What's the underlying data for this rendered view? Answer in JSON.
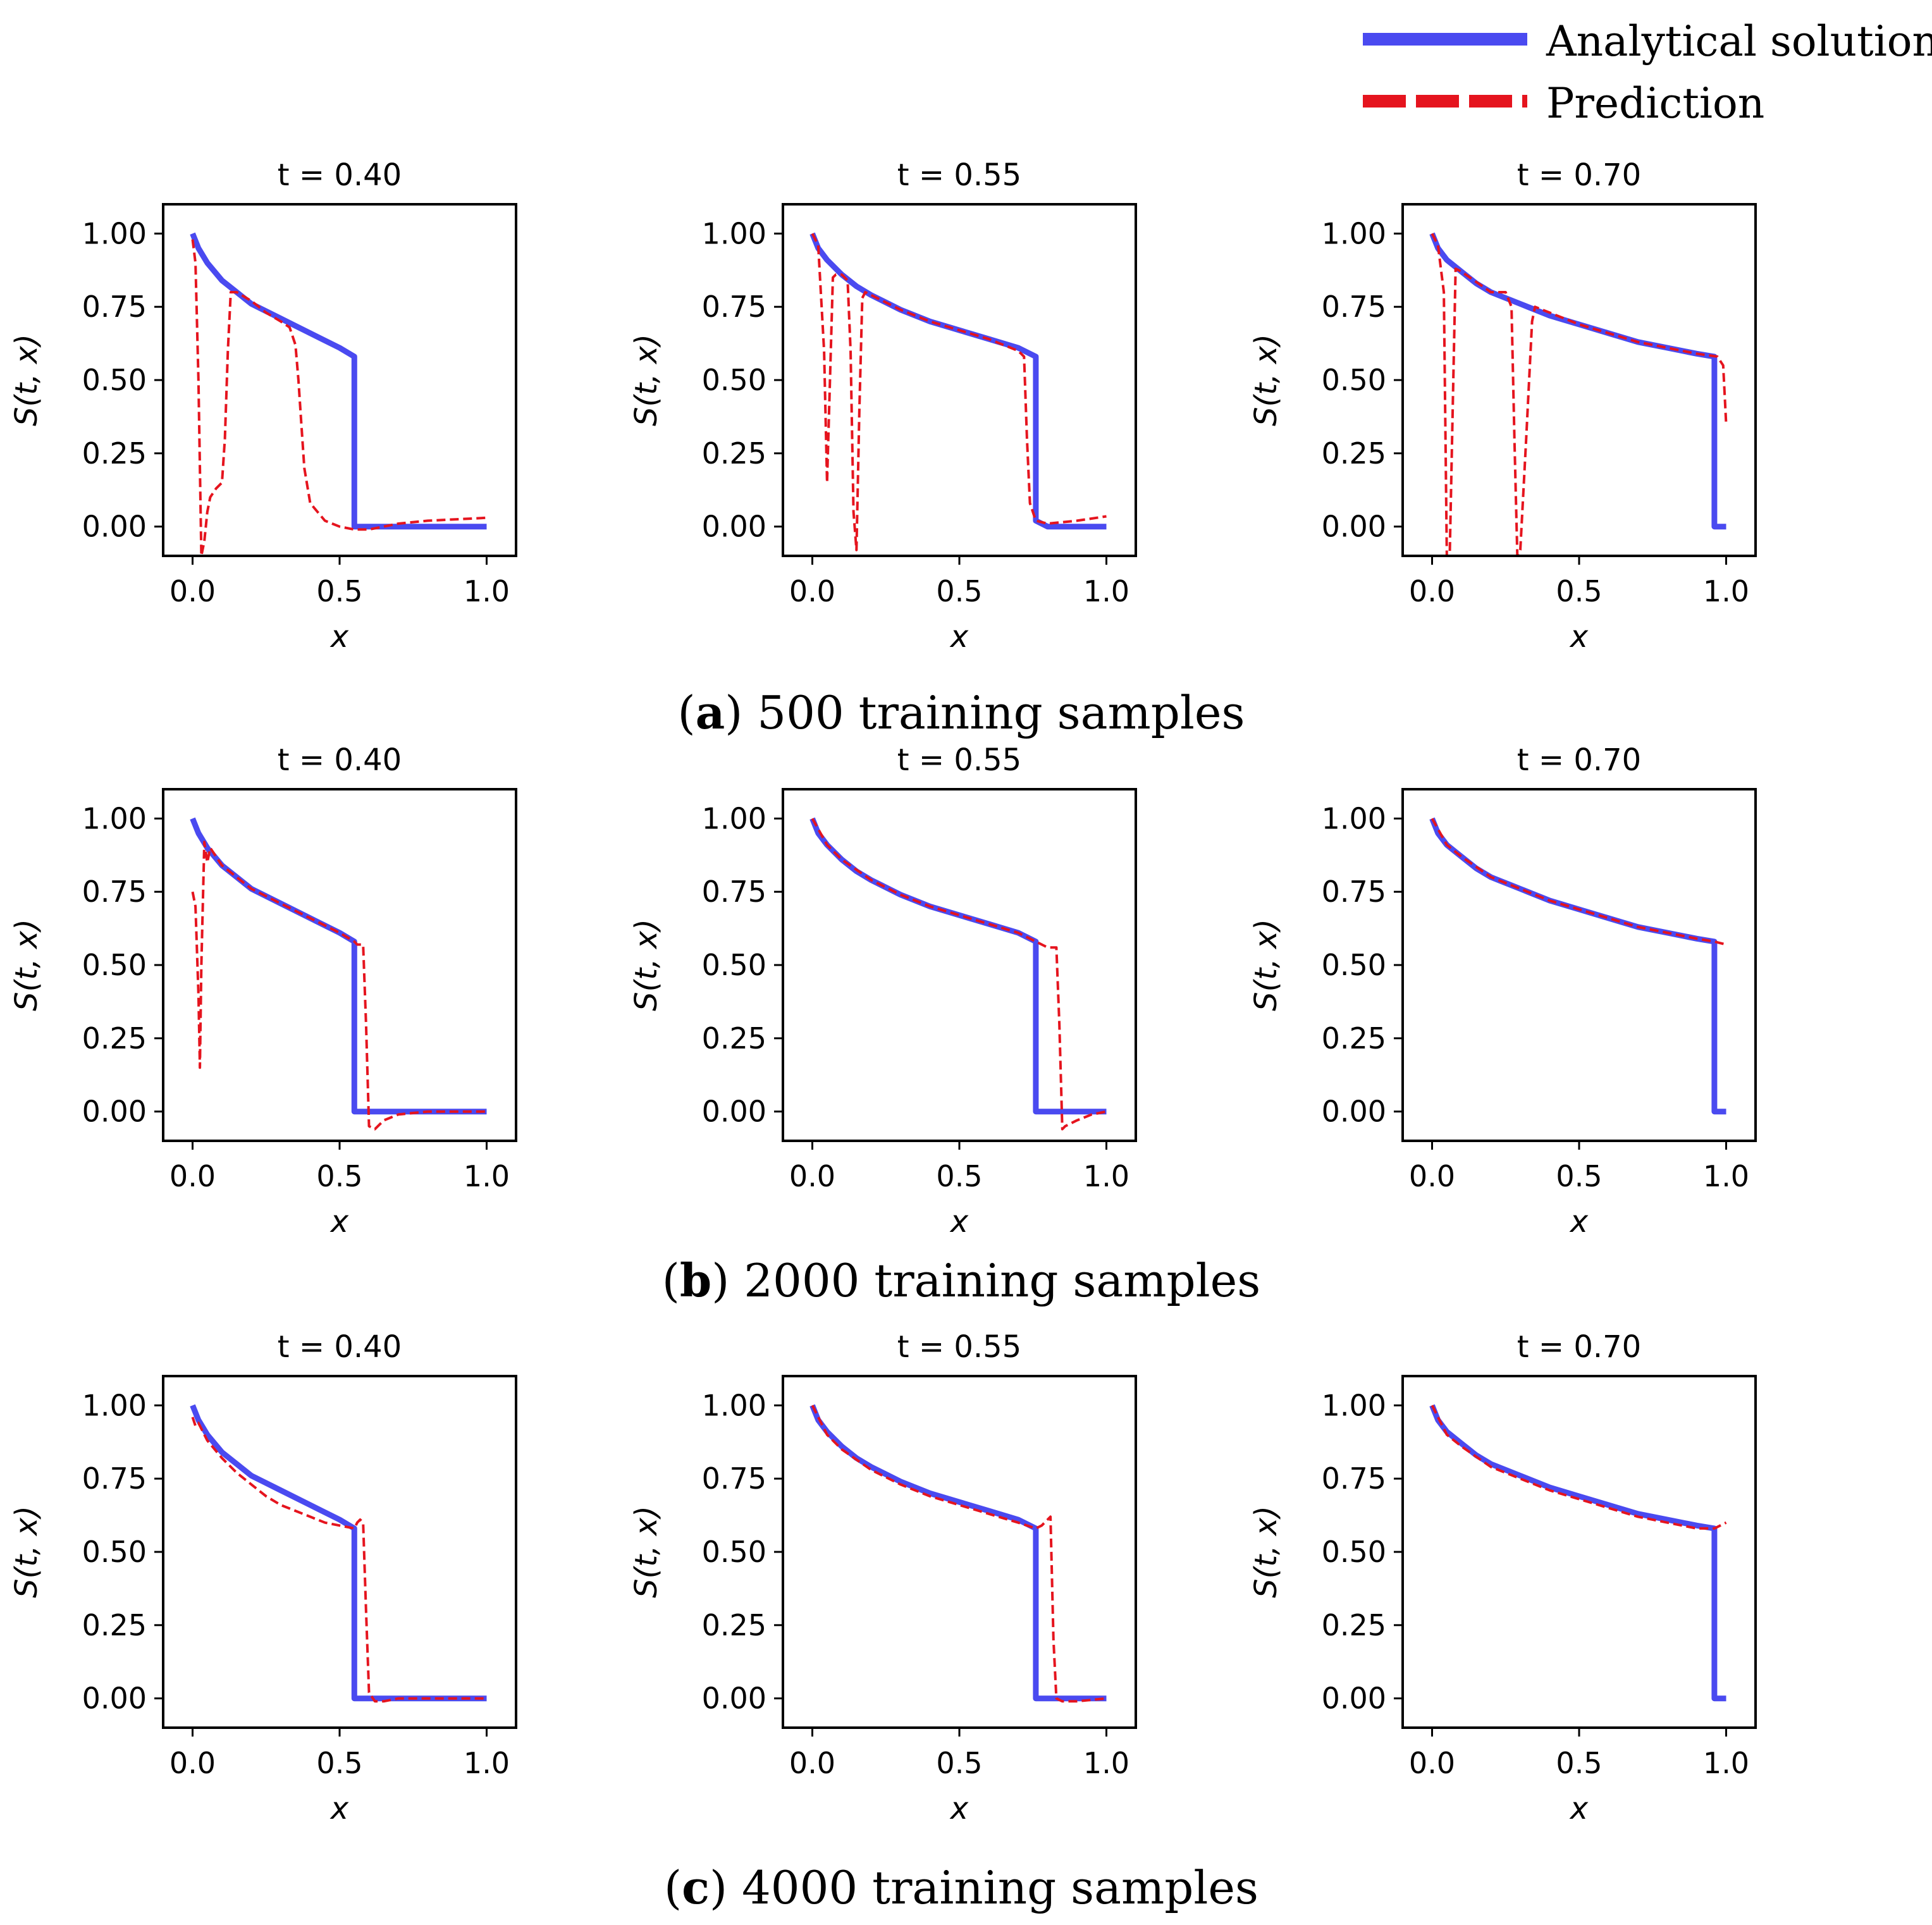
{
  "legend": {
    "placement": "top-right",
    "entries": [
      {
        "label": "Analytical solution",
        "color": "#4a4af0",
        "style": "solid"
      },
      {
        "label": "Prediction",
        "color": "#e5141e",
        "style": "dashed"
      }
    ]
  },
  "axes_common": {
    "xlabel": "x",
    "ylabel": "S(t, x)",
    "xlim": [
      -0.1,
      1.1
    ],
    "ylim": [
      -0.1,
      1.1
    ],
    "xticks": [
      0.0,
      0.5,
      1.0
    ],
    "xtick_labels": [
      "0.0",
      "0.5",
      "1.0"
    ],
    "yticks": [
      0.0,
      0.25,
      0.5,
      0.75,
      1.0
    ],
    "ytick_labels": [
      "0.00",
      "0.25",
      "0.50",
      "0.75",
      "1.00"
    ],
    "grid": false
  },
  "rows": [
    {
      "letter": "a",
      "caption": "500 training samples"
    },
    {
      "letter": "b",
      "caption": "2000 training samples"
    },
    {
      "letter": "c",
      "caption": "4000 training samples"
    }
  ],
  "chart_data": [
    {
      "type": "line",
      "title": "t = 0.40",
      "row": 0,
      "col": 0,
      "series": [
        {
          "name": "Analytical solution",
          "x": [
            0,
            0.02,
            0.05,
            0.1,
            0.15,
            0.2,
            0.3,
            0.4,
            0.5,
            0.55,
            0.55,
            0.6,
            0.8,
            1.0
          ],
          "y": [
            1,
            0.95,
            0.9,
            0.84,
            0.8,
            0.76,
            0.71,
            0.66,
            0.61,
            0.58,
            0,
            0,
            0,
            0
          ]
        },
        {
          "name": "Prediction",
          "x": [
            0,
            0.01,
            0.02,
            0.03,
            0.04,
            0.05,
            0.06,
            0.08,
            0.1,
            0.11,
            0.12,
            0.13,
            0.15,
            0.2,
            0.25,
            0.3,
            0.33,
            0.35,
            0.36,
            0.37,
            0.38,
            0.4,
            0.45,
            0.5,
            0.55,
            0.6,
            0.7,
            0.8,
            0.9,
            1.0
          ],
          "y": [
            0.98,
            0.9,
            0.5,
            -0.1,
            -0.05,
            0.05,
            0.1,
            0.13,
            0.15,
            0.3,
            0.6,
            0.8,
            0.8,
            0.77,
            0.73,
            0.7,
            0.68,
            0.62,
            0.5,
            0.35,
            0.2,
            0.08,
            0.02,
            0,
            -0.01,
            -0.01,
            0.01,
            0.02,
            0.025,
            0.03
          ]
        }
      ]
    },
    {
      "type": "line",
      "title": "t = 0.55",
      "row": 0,
      "col": 1,
      "series": [
        {
          "name": "Analytical solution",
          "x": [
            0,
            0.02,
            0.05,
            0.1,
            0.15,
            0.2,
            0.3,
            0.4,
            0.5,
            0.6,
            0.7,
            0.76,
            0.76,
            0.8,
            1.0
          ],
          "y": [
            1,
            0.95,
            0.91,
            0.86,
            0.82,
            0.79,
            0.74,
            0.7,
            0.67,
            0.64,
            0.61,
            0.58,
            0.02,
            0,
            0
          ]
        },
        {
          "name": "Prediction",
          "x": [
            0,
            0.02,
            0.04,
            0.05,
            0.06,
            0.07,
            0.08,
            0.1,
            0.12,
            0.13,
            0.14,
            0.15,
            0.16,
            0.17,
            0.18,
            0.2,
            0.3,
            0.4,
            0.5,
            0.6,
            0.7,
            0.72,
            0.73,
            0.74,
            0.76,
            0.8,
            0.9,
            1.0
          ],
          "y": [
            1,
            0.96,
            0.6,
            0.15,
            0.5,
            0.85,
            0.86,
            0.86,
            0.84,
            0.6,
            0.05,
            -0.08,
            0.4,
            0.78,
            0.8,
            0.79,
            0.74,
            0.7,
            0.67,
            0.64,
            0.6,
            0.58,
            0.3,
            0.08,
            0.02,
            0.01,
            0.02,
            0.035
          ]
        }
      ]
    },
    {
      "type": "line",
      "title": "t = 0.70",
      "row": 0,
      "col": 2,
      "series": [
        {
          "name": "Analytical solution",
          "x": [
            0,
            0.02,
            0.05,
            0.1,
            0.15,
            0.2,
            0.3,
            0.4,
            0.5,
            0.6,
            0.7,
            0.8,
            0.9,
            0.96,
            0.96,
            1.0
          ],
          "y": [
            1,
            0.95,
            0.91,
            0.87,
            0.83,
            0.8,
            0.76,
            0.72,
            0.69,
            0.66,
            0.63,
            0.61,
            0.59,
            0.58,
            0,
            0
          ]
        },
        {
          "name": "Prediction",
          "x": [
            0,
            0.02,
            0.04,
            0.05,
            0.06,
            0.07,
            0.08,
            0.1,
            0.2,
            0.25,
            0.27,
            0.28,
            0.29,
            0.3,
            0.32,
            0.34,
            0.35,
            0.4,
            0.5,
            0.6,
            0.7,
            0.8,
            0.9,
            0.97,
            0.99,
            1.0
          ],
          "y": [
            1,
            0.96,
            0.8,
            -0.1,
            -0.1,
            0.4,
            0.88,
            0.87,
            0.8,
            0.8,
            0.75,
            0.3,
            -0.1,
            -0.08,
            0.3,
            0.7,
            0.75,
            0.73,
            0.69,
            0.66,
            0.63,
            0.61,
            0.59,
            0.58,
            0.55,
            0.35
          ]
        }
      ]
    },
    {
      "type": "line",
      "title": "t = 0.40",
      "row": 1,
      "col": 0,
      "series": [
        {
          "name": "Analytical solution",
          "x": [
            0,
            0.02,
            0.05,
            0.1,
            0.15,
            0.2,
            0.3,
            0.4,
            0.5,
            0.55,
            0.55,
            0.6,
            0.8,
            1.0
          ],
          "y": [
            1,
            0.95,
            0.9,
            0.84,
            0.8,
            0.76,
            0.71,
            0.66,
            0.61,
            0.58,
            0,
            0,
            0,
            0
          ]
        },
        {
          "name": "Prediction",
          "x": [
            0,
            0.01,
            0.02,
            0.025,
            0.03,
            0.04,
            0.05,
            0.06,
            0.08,
            0.1,
            0.2,
            0.3,
            0.4,
            0.5,
            0.55,
            0.56,
            0.58,
            0.59,
            0.6,
            0.62,
            0.65,
            0.7,
            0.8,
            1.0
          ],
          "y": [
            0.75,
            0.7,
            0.4,
            0.15,
            0.5,
            0.92,
            0.85,
            0.9,
            0.87,
            0.84,
            0.76,
            0.71,
            0.66,
            0.61,
            0.58,
            0.57,
            0.57,
            0.3,
            -0.05,
            -0.06,
            -0.03,
            -0.01,
            0,
            0
          ]
        }
      ]
    },
    {
      "type": "line",
      "title": "t = 0.55",
      "row": 1,
      "col": 1,
      "series": [
        {
          "name": "Analytical solution",
          "x": [
            0,
            0.02,
            0.05,
            0.1,
            0.15,
            0.2,
            0.3,
            0.4,
            0.5,
            0.6,
            0.7,
            0.76,
            0.76,
            0.8,
            1.0
          ],
          "y": [
            1,
            0.95,
            0.91,
            0.86,
            0.82,
            0.79,
            0.74,
            0.7,
            0.67,
            0.64,
            0.61,
            0.58,
            0,
            0,
            0
          ]
        },
        {
          "name": "Prediction",
          "x": [
            0,
            0.05,
            0.1,
            0.2,
            0.3,
            0.4,
            0.5,
            0.6,
            0.7,
            0.76,
            0.8,
            0.83,
            0.84,
            0.85,
            0.86,
            0.9,
            0.95,
            1.0
          ],
          "y": [
            1,
            0.91,
            0.86,
            0.79,
            0.74,
            0.7,
            0.67,
            0.64,
            0.61,
            0.58,
            0.56,
            0.56,
            0.3,
            -0.06,
            -0.05,
            -0.03,
            -0.01,
            0
          ]
        }
      ]
    },
    {
      "type": "line",
      "title": "t = 0.70",
      "row": 1,
      "col": 2,
      "series": [
        {
          "name": "Analytical solution",
          "x": [
            0,
            0.02,
            0.05,
            0.1,
            0.15,
            0.2,
            0.3,
            0.4,
            0.5,
            0.6,
            0.7,
            0.8,
            0.9,
            0.96,
            0.96,
            1.0
          ],
          "y": [
            1,
            0.95,
            0.91,
            0.87,
            0.83,
            0.8,
            0.76,
            0.72,
            0.69,
            0.66,
            0.63,
            0.61,
            0.59,
            0.58,
            0,
            0
          ]
        },
        {
          "name": "Prediction",
          "x": [
            0,
            0.05,
            0.1,
            0.2,
            0.3,
            0.4,
            0.5,
            0.6,
            0.7,
            0.8,
            0.9,
            0.96,
            0.98,
            1.0
          ],
          "y": [
            1,
            0.91,
            0.87,
            0.8,
            0.76,
            0.72,
            0.69,
            0.66,
            0.63,
            0.61,
            0.59,
            0.58,
            0.575,
            0.57
          ]
        }
      ]
    },
    {
      "type": "line",
      "title": "t = 0.40",
      "row": 2,
      "col": 0,
      "series": [
        {
          "name": "Analytical solution",
          "x": [
            0,
            0.02,
            0.05,
            0.1,
            0.15,
            0.2,
            0.3,
            0.4,
            0.5,
            0.55,
            0.55,
            0.6,
            0.8,
            1.0
          ],
          "y": [
            1,
            0.95,
            0.9,
            0.84,
            0.8,
            0.76,
            0.71,
            0.66,
            0.61,
            0.58,
            0,
            0,
            0,
            0
          ]
        },
        {
          "name": "Prediction",
          "x": [
            0,
            0.01,
            0.02,
            0.05,
            0.1,
            0.15,
            0.2,
            0.25,
            0.3,
            0.35,
            0.4,
            0.45,
            0.5,
            0.55,
            0.56,
            0.57,
            0.58,
            0.59,
            0.6,
            0.62,
            0.65,
            0.7,
            0.8,
            1.0
          ],
          "y": [
            0.96,
            0.93,
            0.94,
            0.88,
            0.82,
            0.77,
            0.73,
            0.69,
            0.66,
            0.64,
            0.62,
            0.6,
            0.59,
            0.58,
            0.6,
            0.61,
            0.6,
            0.3,
            0.02,
            -0.01,
            -0.01,
            0,
            0,
            0
          ]
        }
      ]
    },
    {
      "type": "line",
      "title": "t = 0.55",
      "row": 2,
      "col": 1,
      "series": [
        {
          "name": "Analytical solution",
          "x": [
            0,
            0.02,
            0.05,
            0.1,
            0.15,
            0.2,
            0.3,
            0.4,
            0.5,
            0.6,
            0.7,
            0.76,
            0.76,
            0.8,
            1.0
          ],
          "y": [
            1,
            0.95,
            0.91,
            0.86,
            0.82,
            0.79,
            0.74,
            0.7,
            0.67,
            0.64,
            0.61,
            0.58,
            0,
            0,
            0
          ]
        },
        {
          "name": "Prediction",
          "x": [
            0,
            0.05,
            0.1,
            0.2,
            0.3,
            0.4,
            0.5,
            0.6,
            0.7,
            0.76,
            0.78,
            0.8,
            0.81,
            0.82,
            0.83,
            0.85,
            0.9,
            1.0
          ],
          "y": [
            1,
            0.9,
            0.85,
            0.78,
            0.73,
            0.69,
            0.66,
            0.63,
            0.6,
            0.58,
            0.59,
            0.61,
            0.62,
            0.2,
            0,
            -0.01,
            -0.01,
            0
          ]
        }
      ]
    },
    {
      "type": "line",
      "title": "t = 0.70",
      "row": 2,
      "col": 2,
      "series": [
        {
          "name": "Analytical solution",
          "x": [
            0,
            0.02,
            0.05,
            0.1,
            0.15,
            0.2,
            0.3,
            0.4,
            0.5,
            0.6,
            0.7,
            0.8,
            0.9,
            0.96,
            0.96,
            1.0
          ],
          "y": [
            1,
            0.95,
            0.91,
            0.87,
            0.83,
            0.8,
            0.76,
            0.72,
            0.69,
            0.66,
            0.63,
            0.61,
            0.59,
            0.58,
            0,
            0
          ]
        },
        {
          "name": "Prediction",
          "x": [
            0,
            0.05,
            0.1,
            0.2,
            0.3,
            0.4,
            0.5,
            0.6,
            0.7,
            0.8,
            0.9,
            0.96,
            0.98,
            1.0
          ],
          "y": [
            1,
            0.9,
            0.86,
            0.79,
            0.75,
            0.71,
            0.68,
            0.65,
            0.62,
            0.6,
            0.58,
            0.58,
            0.59,
            0.6
          ]
        }
      ]
    }
  ]
}
